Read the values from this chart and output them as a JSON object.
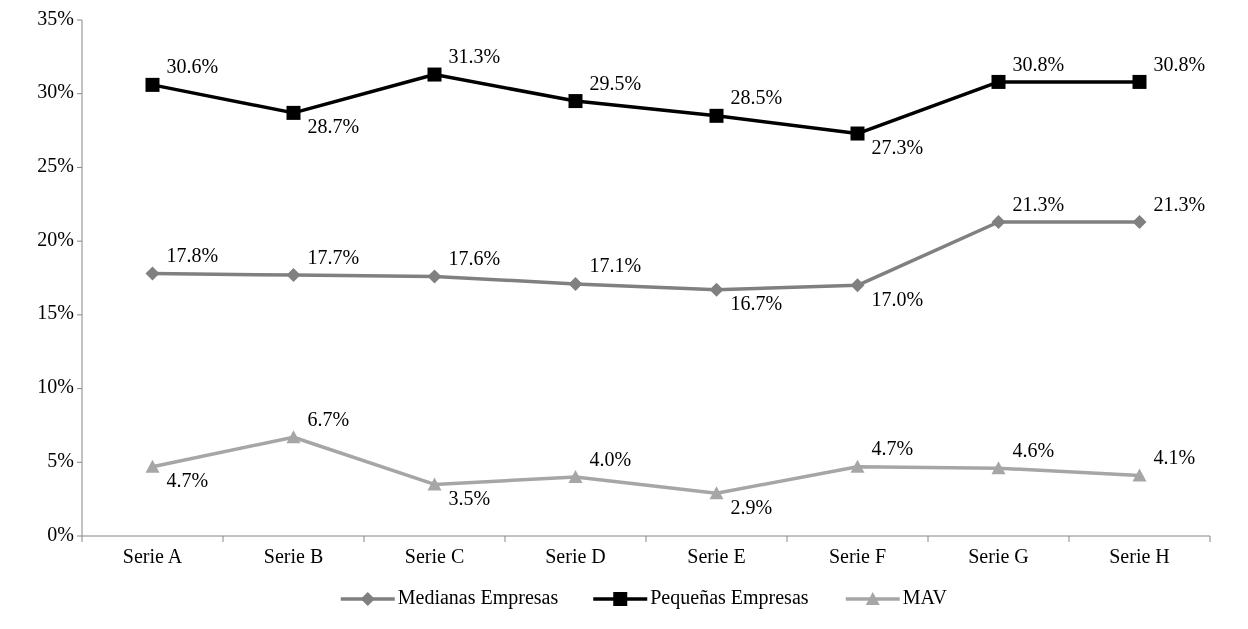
{
  "chart_data": {
    "type": "line",
    "categories": [
      "Serie A",
      "Serie B",
      "Serie C",
      "Serie D",
      "Serie E",
      "Serie F",
      "Serie G",
      "Serie H"
    ],
    "series": [
      {
        "name": "Medianas Empresas",
        "color": "#808080",
        "marker": "diamond",
        "values": [
          17.8,
          17.7,
          17.6,
          17.1,
          16.7,
          17.0,
          21.3,
          21.3
        ],
        "value_labels": [
          "17.8%",
          "17.7%",
          "17.6%",
          "17.1%",
          "16.7%",
          "17.0%",
          "21.3%",
          "21.3%"
        ]
      },
      {
        "name": "Pequeñas Empresas",
        "color": "#000000",
        "marker": "square",
        "values": [
          30.6,
          28.7,
          31.3,
          29.5,
          28.5,
          27.3,
          30.8,
          30.8
        ],
        "value_labels": [
          "30.6%",
          "28.7%",
          "31.3%",
          "29.5%",
          "28.5%",
          "27.3%",
          "30.8%",
          "30.8%"
        ]
      },
      {
        "name": "MAV",
        "color": "#a6a6a6",
        "marker": "triangle",
        "values": [
          4.7,
          6.7,
          3.5,
          4.0,
          2.9,
          4.7,
          4.6,
          4.1
        ],
        "value_labels": [
          "4.7%",
          "6.7%",
          "3.5%",
          "4.0%",
          "2.9%",
          "4.7%",
          "4.6%",
          "4.1%"
        ]
      }
    ],
    "ylim": [
      0,
      35
    ],
    "yticks": [
      {
        "value": 0,
        "label": "0%"
      },
      {
        "value": 5,
        "label": "5%"
      },
      {
        "value": 10,
        "label": "10%"
      },
      {
        "value": 15,
        "label": "15%"
      },
      {
        "value": 20,
        "label": "20%"
      },
      {
        "value": 25,
        "label": "25%"
      },
      {
        "value": 30,
        "label": "30%"
      },
      {
        "value": 35,
        "label": "35%"
      }
    ],
    "legend": "bottom",
    "line_style": "solid"
  }
}
